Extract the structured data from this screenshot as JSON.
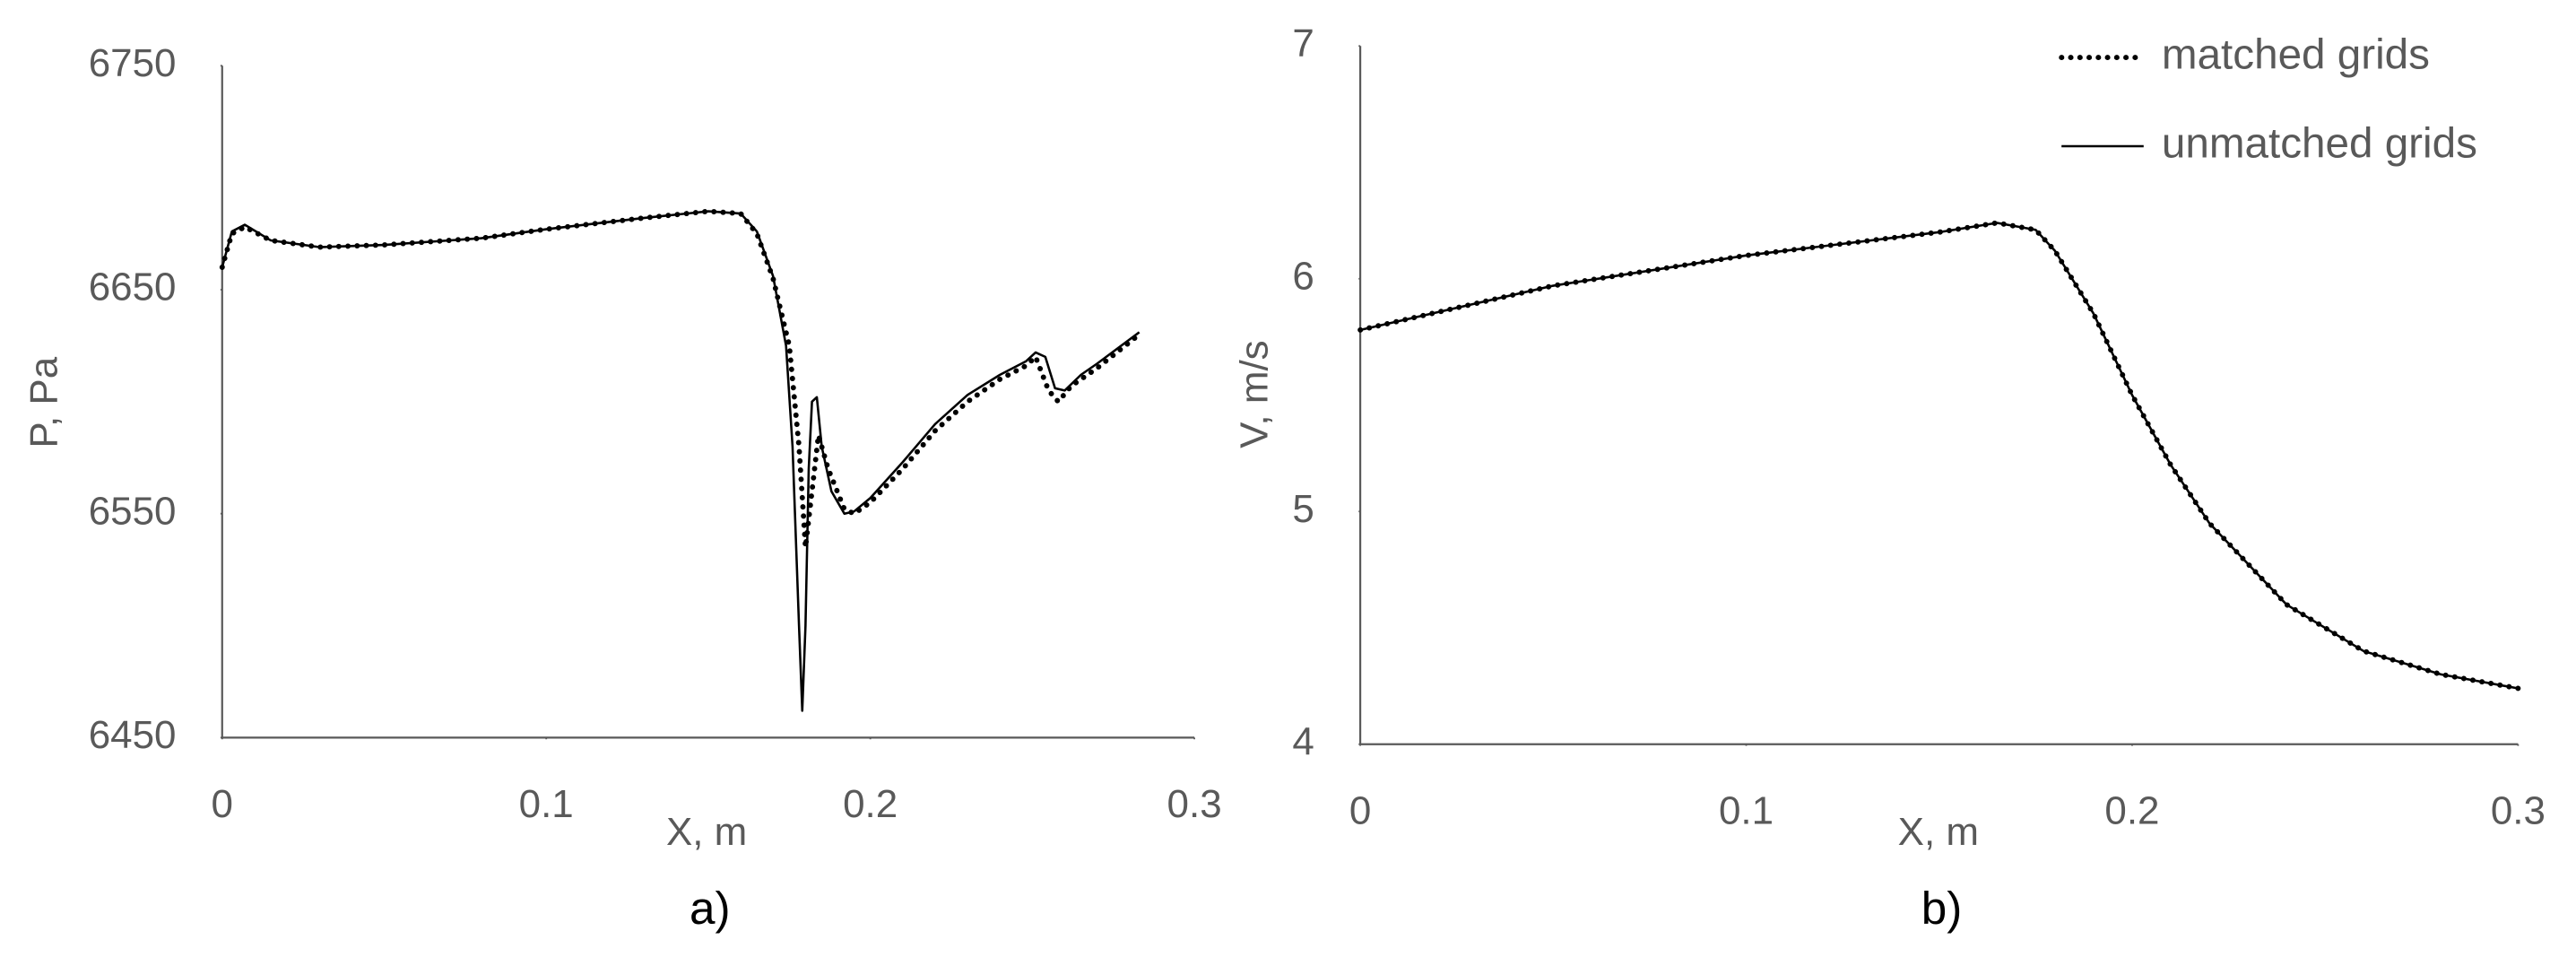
{
  "chart_data": [
    {
      "type": "line",
      "caption": "a)",
      "xlabel": "X, m",
      "ylabel": "P, Pa",
      "xlim": [
        0,
        0.3
      ],
      "xticks": [
        0,
        0.1,
        0.2,
        0.3
      ],
      "ylim": [
        6450,
        6750
      ],
      "yticks": [
        6450,
        6550,
        6650,
        6750
      ],
      "legend": false,
      "series": [
        {
          "color": "#000000",
          "line_style": "dotted",
          "x": [
            0,
            0.003,
            0.007,
            0.015,
            0.03,
            0.05,
            0.08,
            0.1,
            0.13,
            0.15,
            0.16,
            0.165,
            0.17,
            0.175,
            0.178,
            0.18,
            0.182,
            0.184,
            0.187,
            0.192,
            0.195,
            0.2,
            0.21,
            0.22,
            0.23,
            0.24,
            0.248,
            0.251,
            0.255,
            0.258,
            0.262,
            0.27,
            0.283
          ],
          "values": [
            6660,
            6675,
            6678,
            6672,
            6669,
            6670,
            6673,
            6677,
            6682,
            6685,
            6684,
            6675,
            6655,
            6625,
            6580,
            6535,
            6560,
            6585,
            6570,
            6552,
            6550,
            6555,
            6570,
            6587,
            6600,
            6610,
            6616,
            6620,
            6605,
            6600,
            6607,
            6615,
            6630
          ]
        },
        {
          "color": "#000000",
          "line_style": "solid",
          "x": [
            0,
            0.003,
            0.007,
            0.015,
            0.03,
            0.05,
            0.08,
            0.1,
            0.13,
            0.15,
            0.16,
            0.165,
            0.17,
            0.174,
            0.176,
            0.178,
            0.179,
            0.18,
            0.181,
            0.182,
            0.1835,
            0.185,
            0.188,
            0.192,
            0.195,
            0.2,
            0.21,
            0.22,
            0.23,
            0.24,
            0.248,
            0.251,
            0.254,
            0.257,
            0.26,
            0.265,
            0.27,
            0.283
          ],
          "values": [
            6660,
            6676,
            6679,
            6672,
            6669,
            6670,
            6673,
            6677,
            6682,
            6685,
            6684,
            6676,
            6656,
            6625,
            6580,
            6500,
            6462,
            6500,
            6570,
            6600,
            6602,
            6580,
            6560,
            6550,
            6551,
            6557,
            6573,
            6590,
            6603,
            6612,
            6618,
            6622,
            6620,
            6606,
            6605,
            6612,
            6617,
            6631
          ]
        }
      ]
    },
    {
      "type": "line",
      "caption": "b)",
      "xlabel": "X, m",
      "ylabel": "V, m/s",
      "xlim": [
        0,
        0.3
      ],
      "xticks": [
        0,
        0.1,
        0.2,
        0.3
      ],
      "ylim": [
        4,
        7
      ],
      "yticks": [
        4,
        5,
        6,
        7
      ],
      "legend": true,
      "series": [
        {
          "name": "unmatched grids",
          "color": "#000000",
          "line_style": "solid",
          "x": [
            0,
            0.05,
            0.1,
            0.15,
            0.165,
            0.175,
            0.18,
            0.19,
            0.2,
            0.21,
            0.22,
            0.24,
            0.26,
            0.28,
            0.3
          ],
          "values": [
            5.78,
            5.97,
            6.1,
            6.2,
            6.24,
            6.21,
            6.12,
            5.85,
            5.5,
            5.2,
            4.95,
            4.6,
            4.4,
            4.3,
            4.24
          ]
        },
        {
          "name": "matched grids",
          "color": "#000000",
          "line_style": "dotted",
          "x": [
            0,
            0.05,
            0.1,
            0.15,
            0.165,
            0.175,
            0.18,
            0.19,
            0.2,
            0.21,
            0.22,
            0.24,
            0.26,
            0.28,
            0.3
          ],
          "values": [
            5.78,
            5.97,
            6.1,
            6.2,
            6.24,
            6.21,
            6.12,
            5.85,
            5.5,
            5.2,
            4.95,
            4.6,
            4.4,
            4.3,
            4.24
          ]
        }
      ]
    }
  ]
}
